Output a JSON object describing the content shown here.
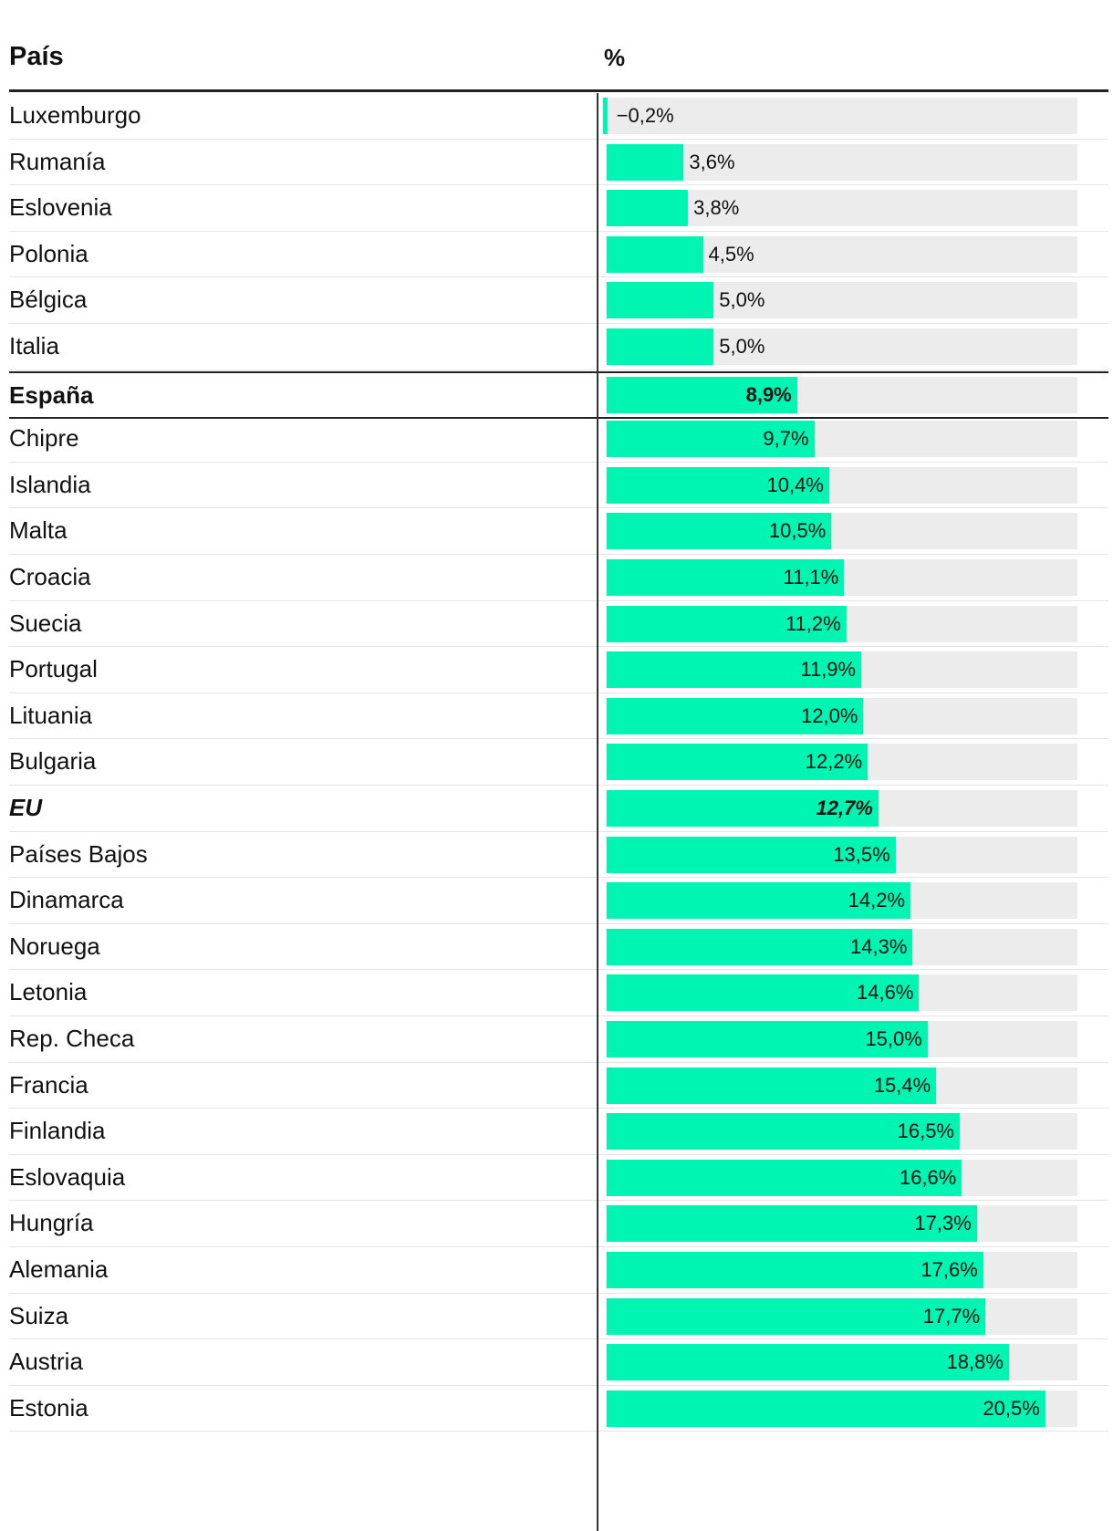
{
  "chart_data": {
    "type": "bar",
    "orientation": "horizontal",
    "headers": {
      "country": "País",
      "value": "%"
    },
    "xlim": [
      0,
      22
    ],
    "colors": {
      "bar": "#00f5b2",
      "track": "#ececec",
      "axis": "#333333"
    },
    "rows": [
      {
        "country": "Luxemburgo",
        "value": -0.2,
        "label": "−0,2%"
      },
      {
        "country": "Rumanía",
        "value": 3.6,
        "label": "3,6%"
      },
      {
        "country": "Eslovenia",
        "value": 3.8,
        "label": "3,8%"
      },
      {
        "country": "Polonia",
        "value": 4.5,
        "label": "4,5%"
      },
      {
        "country": "Bélgica",
        "value": 5.0,
        "label": "5,0%"
      },
      {
        "country": "Italia",
        "value": 5.0,
        "label": "5,0%"
      },
      {
        "country": "España",
        "value": 8.9,
        "label": "8,9%",
        "style": "highlight"
      },
      {
        "country": "Chipre",
        "value": 9.7,
        "label": "9,7%"
      },
      {
        "country": "Islandia",
        "value": 10.4,
        "label": "10,4%"
      },
      {
        "country": "Malta",
        "value": 10.5,
        "label": "10,5%"
      },
      {
        "country": "Croacia",
        "value": 11.1,
        "label": "11,1%"
      },
      {
        "country": "Suecia",
        "value": 11.2,
        "label": "11,2%"
      },
      {
        "country": "Portugal",
        "value": 11.9,
        "label": "11,9%"
      },
      {
        "country": "Lituania",
        "value": 12.0,
        "label": "12,0%"
      },
      {
        "country": "Bulgaria",
        "value": 12.2,
        "label": "12,2%"
      },
      {
        "country": "EU",
        "value": 12.7,
        "label": "12,7%",
        "style": "eu"
      },
      {
        "country": "Países Bajos",
        "value": 13.5,
        "label": "13,5%"
      },
      {
        "country": "Dinamarca",
        "value": 14.2,
        "label": "14,2%"
      },
      {
        "country": "Noruega",
        "value": 14.3,
        "label": "14,3%"
      },
      {
        "country": "Letonia",
        "value": 14.6,
        "label": "14,6%"
      },
      {
        "country": "Rep. Checa",
        "value": 15.0,
        "label": "15,0%"
      },
      {
        "country": "Francia",
        "value": 15.4,
        "label": "15,4%"
      },
      {
        "country": "Finlandia",
        "value": 16.5,
        "label": "16,5%"
      },
      {
        "country": "Eslovaquia",
        "value": 16.6,
        "label": "16,6%"
      },
      {
        "country": "Hungría",
        "value": 17.3,
        "label": "17,3%"
      },
      {
        "country": "Alemania",
        "value": 17.6,
        "label": "17,6%"
      },
      {
        "country": "Suiza",
        "value": 17.7,
        "label": "17,7%"
      },
      {
        "country": "Austria",
        "value": 18.8,
        "label": "18,8%"
      },
      {
        "country": "Estonia",
        "value": 20.5,
        "label": "20,5%"
      }
    ]
  }
}
